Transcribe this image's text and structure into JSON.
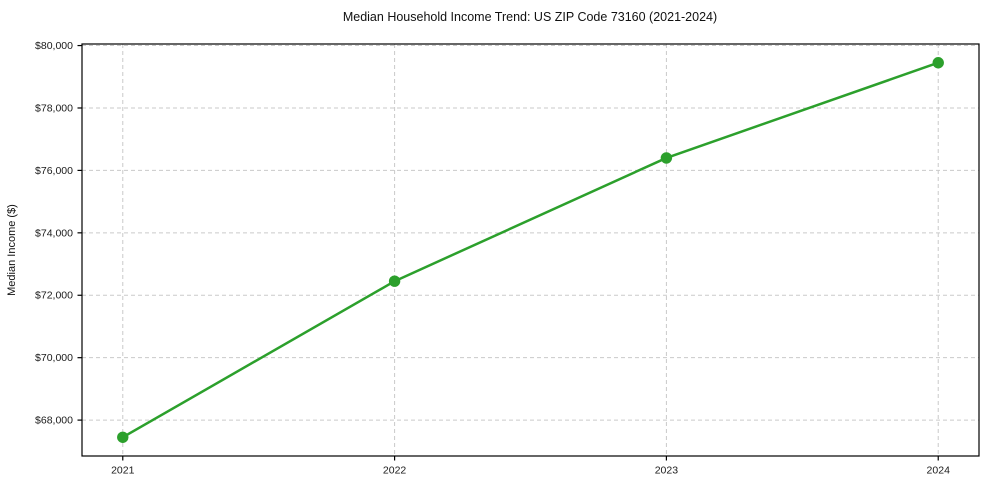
{
  "figure": {
    "background": "#ffffff"
  },
  "chart_data": {
    "type": "line",
    "title": "Median Household Income Trend: US ZIP Code 73160 (2021-2024)",
    "xlabel": "",
    "ylabel": "Median Income ($)",
    "x": [
      2021,
      2022,
      2023,
      2024
    ],
    "x_tick_labels": [
      "2021",
      "2022",
      "2023",
      "2024"
    ],
    "series": [
      {
        "name": "median-household-income",
        "values": [
          67450,
          72450,
          76400,
          79450
        ],
        "color": "#2ca02c",
        "marker": "circle",
        "line_width": 2.5,
        "marker_radius": 5.7
      }
    ],
    "y_ticks": [
      {
        "value": 68000,
        "label": "$68,000"
      },
      {
        "value": 70000,
        "label": "$70,000"
      },
      {
        "value": 72000,
        "label": "$72,000"
      },
      {
        "value": 74000,
        "label": "$74,000"
      },
      {
        "value": 76000,
        "label": "$76,000"
      },
      {
        "value": 78000,
        "label": "$78,000"
      },
      {
        "value": 80000,
        "label": "$80,000"
      }
    ],
    "ylim": [
      66850,
      80050
    ],
    "xlim": [
      2020.85,
      2024.15
    ],
    "grid": true,
    "grid_style": "dashed",
    "grid_color": "#cacaca",
    "axis_color": "#000000",
    "legend_position": "none"
  }
}
